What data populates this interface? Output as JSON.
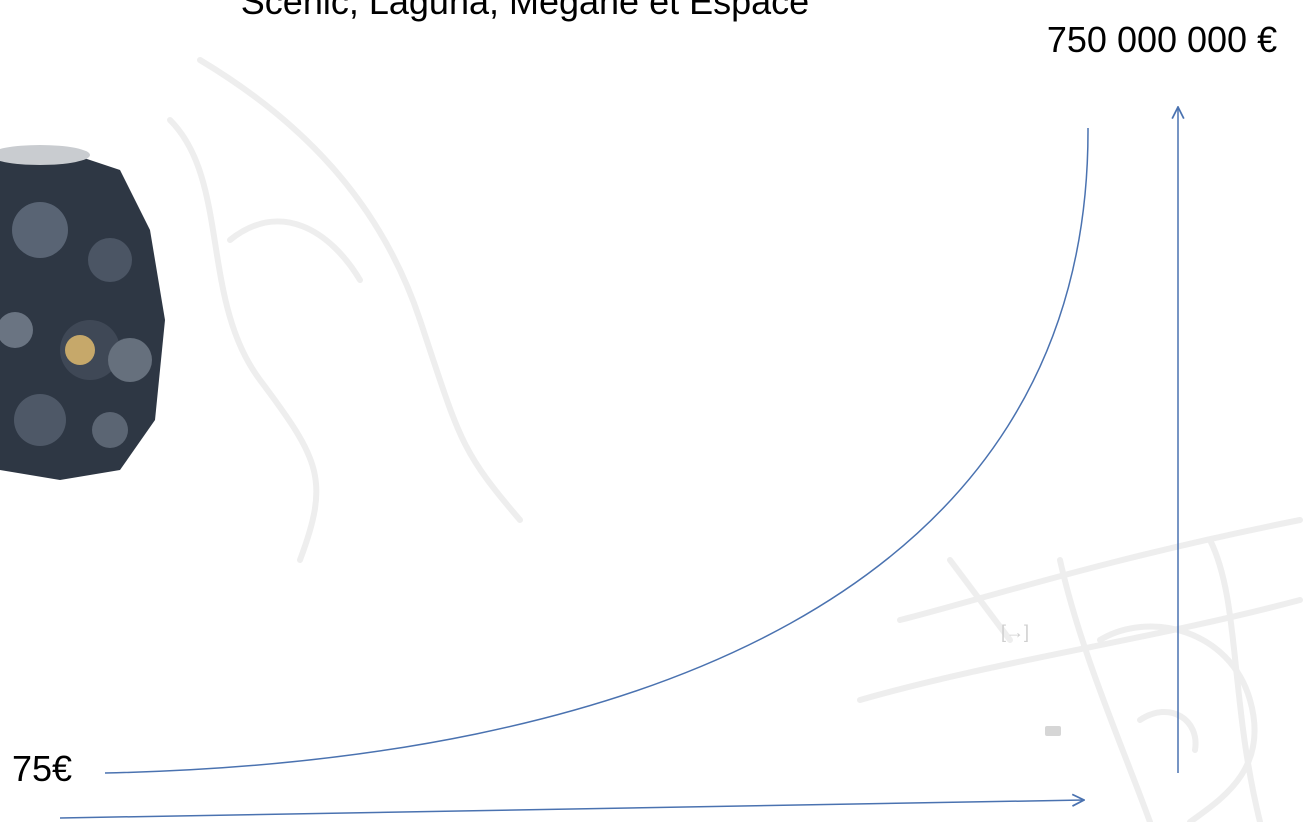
{
  "slide": {
    "title": "Scénic, Laguna, Mégane et Espace",
    "top_label": "750 000 000 €",
    "bottom_label": "75€",
    "icon_text": "[→]"
  }
}
